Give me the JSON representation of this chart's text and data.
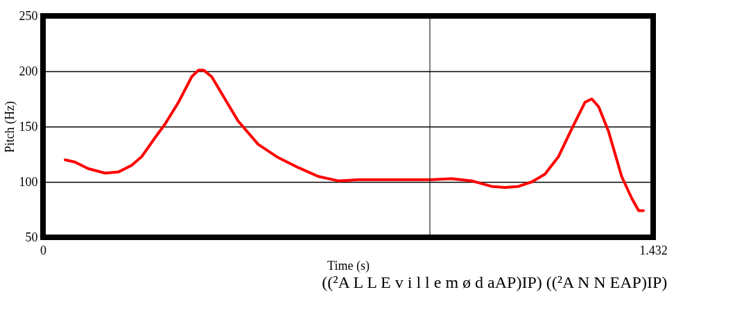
{
  "chart_data": {
    "type": "line",
    "xlabel": "Time (s)",
    "ylabel": "Pitch (Hz)",
    "annotations": [
      "((²A L L E v i l l e m ø d aAP)IP) ((²A N N EAP)IP)"
    ],
    "xlim": [
      0,
      1.432
    ],
    "xticks": [
      0,
      1.432
    ],
    "ylim": [
      50,
      250
    ],
    "yticks": [
      50,
      100,
      150,
      200,
      250
    ],
    "grid": "y",
    "legend": false,
    "marker": "none",
    "line_style": "solid",
    "ref_lines": [
      {
        "axis": "x",
        "value": 0.908,
        "color": "#000000"
      }
    ],
    "series": [
      {
        "color": "#ff0000",
        "x": [
          0.052,
          0.075,
          0.106,
          0.146,
          0.177,
          0.208,
          0.232,
          0.263,
          0.286,
          0.318,
          0.349,
          0.365,
          0.377,
          0.396,
          0.427,
          0.458,
          0.505,
          0.552,
          0.599,
          0.646,
          0.693,
          0.74,
          0.787,
          0.85,
          0.912,
          0.959,
          1.006,
          1.053,
          1.084,
          1.116,
          1.147,
          1.178,
          1.21,
          1.241,
          1.272,
          1.288,
          1.304,
          1.327,
          1.358,
          1.382,
          1.398,
          1.409
        ],
        "values": [
          120,
          118,
          112,
          108,
          109,
          115,
          123,
          140,
          152,
          172,
          195,
          201,
          201,
          195,
          175,
          155,
          134,
          122,
          113,
          105,
          101,
          102,
          102,
          102,
          102,
          103,
          101,
          96,
          95,
          96,
          100,
          107,
          123,
          148,
          172,
          175,
          168,
          146,
          105,
          85,
          74,
          74
        ]
      }
    ]
  }
}
